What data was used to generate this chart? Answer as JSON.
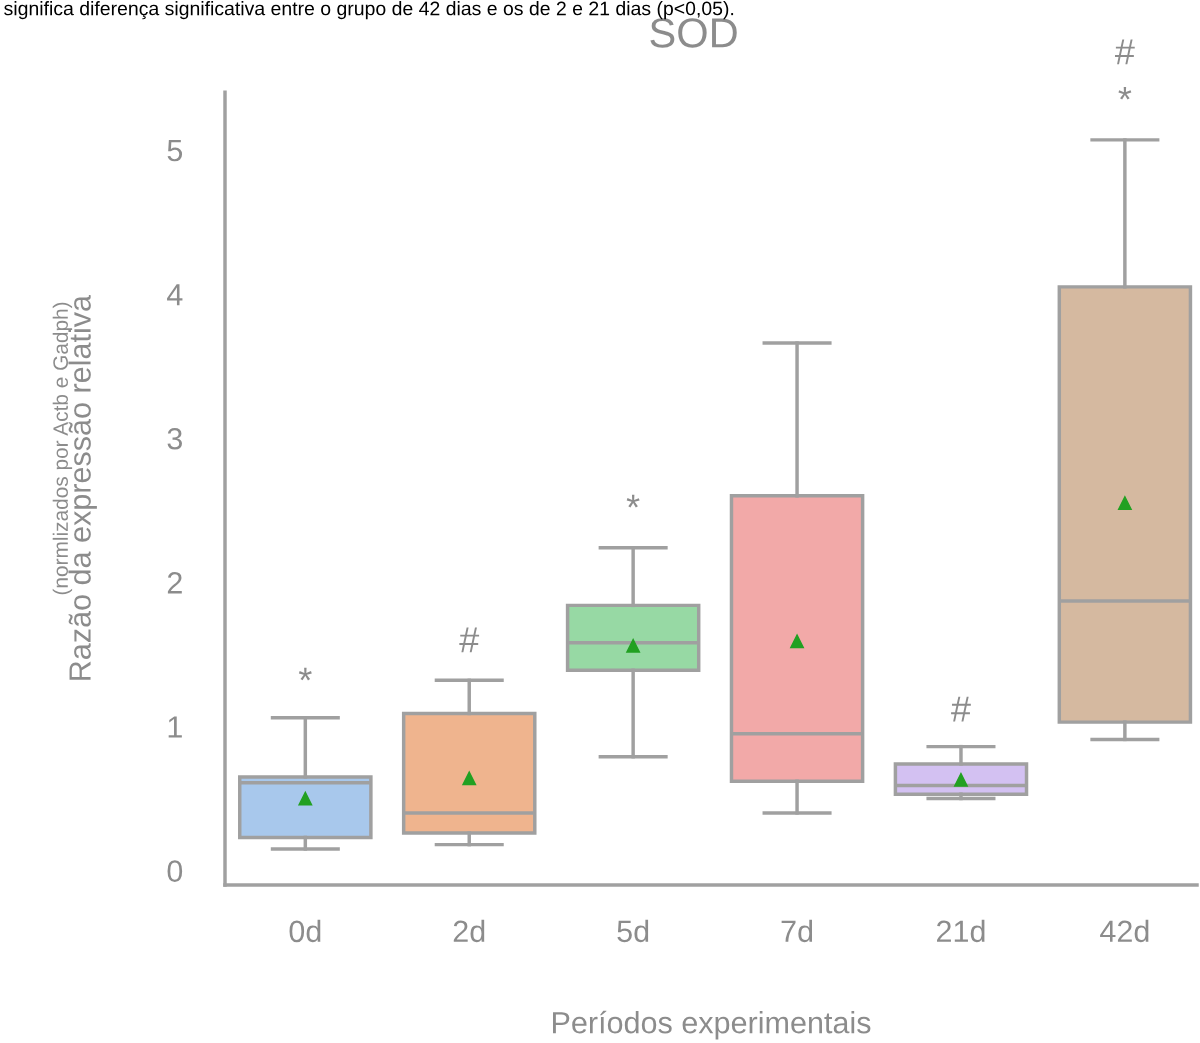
{
  "chart_data": {
    "type": "box",
    "title": "SOD",
    "xlabel": "Períodos experimentais",
    "ylabel": "Razão da expressão relativa",
    "categories": [
      "0d",
      "2d",
      "5d",
      "7d",
      "21d",
      "42d"
    ],
    "colors": [
      "#a8c8ec",
      "#efb48e",
      "#97d9a4",
      "#f2a9a8",
      "#d3c1f2",
      "#d5b9a0"
    ],
    "boxes": [
      {
        "low": 0.15,
        "q1": 0.23,
        "median": 0.61,
        "q3": 0.65,
        "high": 1.06,
        "mean": 0.5
      },
      {
        "low": 0.18,
        "q1": 0.26,
        "median": 0.4,
        "q3": 1.09,
        "high": 1.32,
        "mean": 0.64
      },
      {
        "low": 0.79,
        "q1": 1.39,
        "median": 1.58,
        "q3": 1.84,
        "high": 2.24,
        "mean": 1.56
      },
      {
        "low": 0.4,
        "q1": 0.62,
        "median": 0.95,
        "q3": 2.6,
        "high": 3.66,
        "mean": 1.59
      },
      {
        "low": 0.5,
        "q1": 0.53,
        "median": 0.59,
        "q3": 0.74,
        "high": 0.86,
        "mean": 0.63
      },
      {
        "low": 0.91,
        "q1": 1.03,
        "median": 1.87,
        "q3": 4.05,
        "high": 5.07,
        "mean": 2.55
      }
    ],
    "ylim": [
      -0.1,
      5.4
    ],
    "yticks": [
      0,
      1,
      2,
      3,
      4,
      5
    ],
    "grid": false,
    "marker": "triangle",
    "annotations": [
      "significa diferença significativa entre o grupo de 42 dias e os de 2 e 21 dias (p<0,05).",
      "(normlizados por Actb e Gadph)",
      "*",
      "#",
      "*",
      "#",
      "*",
      "#"
    ]
  }
}
